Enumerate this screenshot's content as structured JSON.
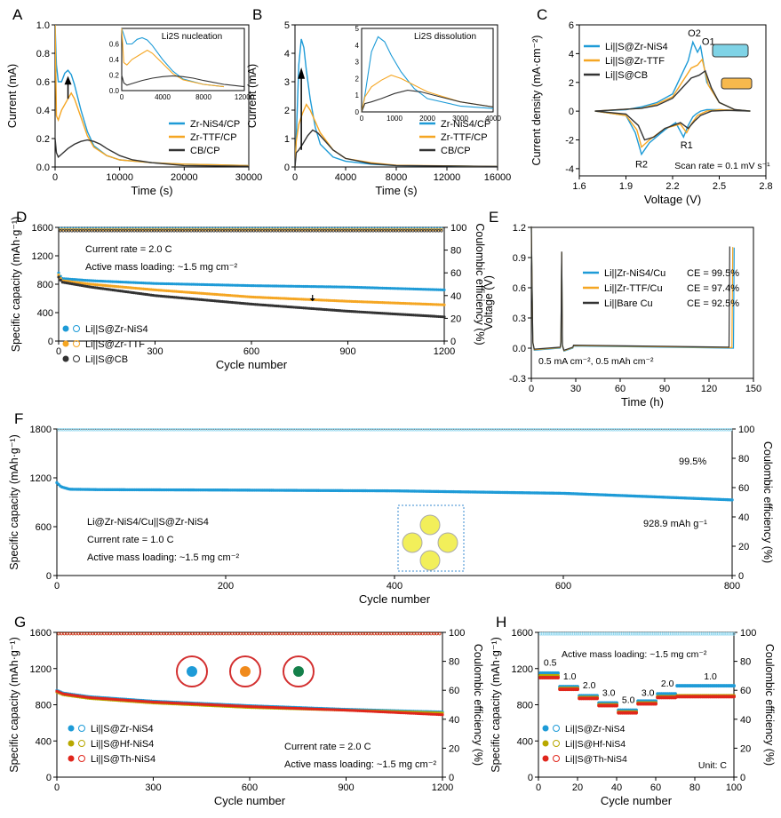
{
  "chart_data": [
    {
      "panel": "A",
      "type": "line",
      "xlabel": "Time (s)",
      "ylabel": "Current (mA)",
      "xlim": [
        0,
        30000
      ],
      "ylim": [
        0,
        1.0
      ],
      "xticks": [
        "0",
        "10000",
        "20000",
        "30000"
      ],
      "yticks": [
        "0.0",
        "0.2",
        "0.4",
        "0.6",
        "0.8",
        "1.0"
      ],
      "legend": [
        "Zr-NiS4/CP",
        "Zr-TTF/CP",
        "CB/CP"
      ],
      "inset_title": "Li2S nucleation",
      "inset_xticks": [
        "0",
        "4000",
        "8000",
        "12000"
      ],
      "inset_yticks": [
        "0.0",
        "0.2",
        "0.4",
        "0.6"
      ],
      "series": [
        {
          "name": "Zr-NiS4/CP",
          "color": "#1e9bd7",
          "x": [
            0,
            200,
            500,
            1000,
            1500,
            2000,
            2500,
            3000,
            4000,
            5000,
            6000,
            8000,
            10000,
            15000,
            20000,
            30000
          ],
          "values": [
            1.0,
            0.72,
            0.6,
            0.6,
            0.66,
            0.68,
            0.65,
            0.58,
            0.4,
            0.25,
            0.15,
            0.08,
            0.05,
            0.03,
            0.02,
            0.01
          ]
        },
        {
          "name": "Zr-TTF/CP",
          "color": "#f5a623",
          "x": [
            0,
            200,
            500,
            1000,
            2000,
            2500,
            3000,
            4000,
            5000,
            6000,
            8000,
            10000,
            15000,
            20000,
            30000
          ],
          "values": [
            1.0,
            0.36,
            0.33,
            0.4,
            0.48,
            0.52,
            0.48,
            0.35,
            0.22,
            0.14,
            0.08,
            0.05,
            0.03,
            0.02,
            0.01
          ]
        },
        {
          "name": "CB/CP",
          "color": "#333333",
          "x": [
            0,
            200,
            500,
            1000,
            2000,
            3000,
            4000,
            5000,
            6000,
            7000,
            8000,
            10000,
            12000,
            15000,
            20000,
            30000
          ],
          "values": [
            0.2,
            0.1,
            0.07,
            0.09,
            0.13,
            0.16,
            0.18,
            0.19,
            0.18,
            0.16,
            0.13,
            0.08,
            0.05,
            0.03,
            0.01,
            0.005
          ]
        }
      ]
    },
    {
      "panel": "B",
      "type": "line",
      "xlabel": "Time (s)",
      "ylabel": "Current (mA)",
      "xlim": [
        0,
        16000
      ],
      "ylim": [
        0,
        5
      ],
      "xticks": [
        "0",
        "4000",
        "8000",
        "12000",
        "16000"
      ],
      "yticks": [
        "0",
        "1",
        "2",
        "3",
        "4",
        "5"
      ],
      "legend": [
        "Zr-NiS4/CP",
        "Zr-TTF/CP",
        "CB/CP"
      ],
      "inset_title": "Li2S dissolution",
      "inset_xticks": [
        "0",
        "1000",
        "2000",
        "3000",
        "4000"
      ],
      "inset_yticks": [
        "0",
        "1",
        "2",
        "3",
        "4",
        "5"
      ],
      "series": [
        {
          "name": "Zr-NiS4/CP",
          "color": "#1e9bd7",
          "x": [
            0,
            100,
            300,
            500,
            700,
            900,
            1200,
            1600,
            2000,
            3000,
            4000,
            6000,
            8000,
            16000
          ],
          "values": [
            0,
            1.0,
            3.6,
            4.5,
            4.2,
            3.4,
            2.4,
            1.4,
            0.8,
            0.35,
            0.2,
            0.1,
            0.05,
            0.02
          ]
        },
        {
          "name": "Zr-TTF/CP",
          "color": "#f5a623",
          "x": [
            0,
            100,
            300,
            600,
            900,
            1200,
            1600,
            2000,
            3000,
            4000,
            6000,
            8000,
            16000
          ],
          "values": [
            0,
            0.9,
            1.5,
            1.9,
            2.2,
            2.0,
            1.6,
            1.2,
            0.6,
            0.3,
            0.15,
            0.06,
            0.02
          ]
        },
        {
          "name": "CB/CP",
          "color": "#333333",
          "x": [
            0,
            100,
            300,
            600,
            1000,
            1400,
            1800,
            2400,
            3000,
            4000,
            6000,
            8000,
            16000
          ],
          "values": [
            0,
            0.5,
            0.6,
            0.8,
            1.1,
            1.3,
            1.2,
            0.9,
            0.6,
            0.3,
            0.12,
            0.05,
            0.02
          ]
        }
      ]
    },
    {
      "panel": "C",
      "type": "line",
      "xlabel": "Voltage (V)",
      "ylabel": "Current density (mA·cm⁻²)",
      "xlim": [
        1.6,
        2.8
      ],
      "ylim": [
        -4.5,
        6
      ],
      "xticks": [
        "1.6",
        "1.9",
        "2.2",
        "2.5",
        "2.8"
      ],
      "yticks": [
        "-4",
        "-2",
        "0",
        "2",
        "4",
        "6"
      ],
      "legend": [
        "Li||S@Zr-NiS4",
        "Li||S@Zr-TTF",
        "Li||S@CB"
      ],
      "annotations": [
        "O2",
        "O1",
        "R1",
        "R2",
        "Scan rate = 0.1 mV s⁻¹"
      ],
      "series": [
        {
          "name": "Li||S@Zr-NiS4",
          "color": "#1e9bd7",
          "x": [
            1.7,
            1.9,
            1.96,
            2.0,
            2.05,
            2.15,
            2.22,
            2.27,
            2.3,
            2.33,
            2.35,
            2.38,
            2.42,
            2.5,
            2.6,
            2.7,
            2.6,
            2.5,
            2.42,
            2.38,
            2.36,
            2.33,
            2.3,
            2.2,
            2.1,
            2.0,
            1.9,
            1.7
          ],
          "values": [
            0,
            -0.3,
            -1.5,
            -3.0,
            -2.2,
            -1.3,
            -0.8,
            -1.8,
            -1.0,
            -0.4,
            -0.2,
            0,
            0.1,
            0.1,
            0.05,
            0.0,
            0.1,
            0.6,
            2.0,
            4.5,
            4.1,
            4.8,
            3.5,
            1.2,
            0.6,
            0.3,
            0.1,
            0
          ]
        },
        {
          "name": "Li||S@Zr-TTF",
          "color": "#f5a623",
          "x": [
            1.7,
            1.9,
            1.97,
            2.0,
            2.05,
            2.15,
            2.25,
            2.29,
            2.32,
            2.36,
            2.42,
            2.5,
            2.7,
            2.6,
            2.5,
            2.43,
            2.39,
            2.36,
            2.32,
            2.2,
            2.1,
            2.0,
            1.7
          ],
          "values": [
            0,
            -0.3,
            -1.3,
            -2.5,
            -2.0,
            -1.2,
            -0.9,
            -1.5,
            -0.9,
            -0.3,
            0,
            0.1,
            0,
            0.1,
            0.6,
            1.8,
            3.6,
            3.2,
            3.0,
            1.0,
            0.5,
            0.2,
            0
          ]
        },
        {
          "name": "Li||S@CB",
          "color": "#333333",
          "x": [
            1.7,
            1.9,
            1.98,
            2.02,
            2.08,
            2.15,
            2.25,
            2.3,
            2.34,
            2.38,
            2.45,
            2.55,
            2.7,
            2.6,
            2.5,
            2.45,
            2.41,
            2.37,
            2.32,
            2.2,
            2.1,
            2.0,
            1.7
          ],
          "values": [
            0,
            -0.2,
            -1.0,
            -2.0,
            -1.8,
            -1.2,
            -0.8,
            -1.2,
            -0.7,
            -0.3,
            0,
            0.05,
            0,
            0.1,
            0.6,
            1.6,
            2.8,
            2.5,
            2.3,
            0.9,
            0.4,
            0.2,
            0
          ]
        }
      ]
    },
    {
      "panel": "D",
      "type": "scatter",
      "xlabel": "Cycle number",
      "ylabel": "Specific capacity (mAh·g⁻¹)",
      "y2label": "Coulombic efficiency (%)",
      "xlim": [
        0,
        1200
      ],
      "ylim": [
        0,
        1600
      ],
      "y2lim": [
        0,
        100
      ],
      "xticks": [
        "0",
        "300",
        "600",
        "900",
        "1200"
      ],
      "yticks": [
        "0",
        "400",
        "800",
        "1200",
        "1600"
      ],
      "y2ticks": [
        "0",
        "20",
        "40",
        "60",
        "80",
        "100"
      ],
      "annotations": [
        "Current rate = 2.0 C",
        "Active mass loading: ~1.5 mg cm⁻²"
      ],
      "legend": [
        "Li||S@Zr-NiS4",
        "Li||S@Zr-TTF",
        "Li||S@CB"
      ],
      "series": [
        {
          "name": "Li||S@Zr-NiS4",
          "color": "#1e9bd7",
          "x": [
            0,
            10,
            100,
            300,
            600,
            900,
            1200
          ],
          "values": [
            960,
            880,
            850,
            810,
            780,
            760,
            720
          ]
        },
        {
          "name": "Li||S@Zr-TTF",
          "color": "#f5a623",
          "x": [
            0,
            10,
            100,
            300,
            600,
            900,
            1200
          ],
          "values": [
            930,
            850,
            800,
            720,
            620,
            560,
            510
          ]
        },
        {
          "name": "Li||S@CB",
          "color": "#333333",
          "x": [
            0,
            10,
            100,
            300,
            600,
            900,
            1200
          ],
          "values": [
            900,
            830,
            760,
            640,
            520,
            420,
            340
          ]
        }
      ],
      "ce_series": [
        {
          "name": "Li||S@Zr-NiS4",
          "color": "#1e9bd7",
          "value": 99
        },
        {
          "name": "Li||S@Zr-TTF",
          "color": "#f5a623",
          "value": 98
        },
        {
          "name": "Li||S@CB",
          "color": "#333333",
          "value": 97
        }
      ]
    },
    {
      "panel": "E",
      "type": "line",
      "xlabel": "Time (h)",
      "ylabel": "Voltage (V)",
      "xlim": [
        0,
        150
      ],
      "ylim": [
        -0.3,
        1.2
      ],
      "xticks": [
        "0",
        "30",
        "60",
        "90",
        "120",
        "150"
      ],
      "yticks": [
        "-0.3",
        "0.0",
        "0.3",
        "0.6",
        "0.9",
        "1.2"
      ],
      "legend": [
        "Li||Zr-NiS4/Cu",
        "Li||Zr-TTF/Cu",
        "Li||Bare Cu"
      ],
      "ce_labels": [
        "CE = 99.5%",
        "CE = 97.4%",
        "CE = 92.5%"
      ],
      "annotation": "0.5 mA cm⁻², 0.5 mAh cm⁻²",
      "series": [
        {
          "name": "Li||Zr-NiS4/Cu",
          "color": "#1e9bd7",
          "end_h": 137
        },
        {
          "name": "Li||Zr-TTF/Cu",
          "color": "#f5a623",
          "end_h": 136
        },
        {
          "name": "Li||Bare Cu",
          "color": "#333333",
          "end_h": 134
        }
      ]
    },
    {
      "panel": "F",
      "type": "scatter",
      "xlabel": "Cycle number",
      "ylabel": "Specific capacity (mAh·g⁻¹)",
      "y2label": "Coulombic efficiency (%)",
      "xlim": [
        0,
        800
      ],
      "ylim": [
        0,
        1800
      ],
      "y2lim": [
        0,
        100
      ],
      "xticks": [
        "0",
        "200",
        "400",
        "600",
        "800"
      ],
      "yticks": [
        "0",
        "600",
        "1200",
        "1800"
      ],
      "y2ticks": [
        "0",
        "20",
        "40",
        "60",
        "80",
        "100"
      ],
      "annotations": [
        "Li@Zr-NiS4/Cu||S@Zr-NiS4",
        "Current rate = 1.0 C",
        "Active mass loading: ~1.5 mg cm⁻²",
        "99.5%",
        "928.9 mAh g⁻¹"
      ],
      "series": [
        {
          "name": "capacity",
          "color": "#1e9bd7",
          "x": [
            0,
            5,
            15,
            50,
            200,
            400,
            600,
            700,
            800
          ],
          "values": [
            1140,
            1090,
            1060,
            1055,
            1050,
            1040,
            1010,
            970,
            928.9
          ]
        }
      ],
      "ce": 99.5
    },
    {
      "panel": "G",
      "type": "scatter",
      "xlabel": "Cycle number",
      "ylabel": "Specific capacity (mAh·g⁻¹)",
      "y2label": "Coulombic efficiency (%)",
      "xlim": [
        0,
        1200
      ],
      "ylim": [
        0,
        1600
      ],
      "y2lim": [
        0,
        100
      ],
      "xticks": [
        "0",
        "300",
        "600",
        "900",
        "1200"
      ],
      "yticks": [
        "0",
        "400",
        "800",
        "1200",
        "1600"
      ],
      "y2ticks": [
        "0",
        "20",
        "40",
        "60",
        "80",
        "100"
      ],
      "annotations": [
        "Current rate = 2.0 C",
        "Active mass loading: ~1.5 mg cm⁻²"
      ],
      "legend": [
        "Li||S@Zr-NiS4",
        "Li||S@Hf-NiS4",
        "Li||S@Th-NiS4"
      ],
      "series": [
        {
          "name": "Li||S@Zr-NiS4",
          "color": "#1e9bd7",
          "x": [
            0,
            20,
            100,
            300,
            600,
            900,
            1200
          ],
          "values": [
            960,
            930,
            890,
            840,
            790,
            750,
            720
          ]
        },
        {
          "name": "Li||S@Hf-NiS4",
          "color": "#b8a800",
          "x": [
            0,
            20,
            100,
            300,
            600,
            900,
            1200
          ],
          "values": [
            940,
            910,
            870,
            820,
            770,
            740,
            710
          ]
        },
        {
          "name": "Li||S@Th-NiS4",
          "color": "#e0261c",
          "x": [
            0,
            20,
            100,
            300,
            600,
            900,
            1200
          ],
          "values": [
            950,
            920,
            880,
            830,
            780,
            740,
            690
          ]
        }
      ]
    },
    {
      "panel": "H",
      "type": "scatter",
      "xlabel": "Cycle number",
      "ylabel": "Specific capacity (mAh·g⁻¹)",
      "y2label": "Coulombic efficiency (%)",
      "xlim": [
        0,
        100
      ],
      "ylim": [
        0,
        1600
      ],
      "y2lim": [
        0,
        100
      ],
      "xticks": [
        "0",
        "20",
        "40",
        "60",
        "80",
        "100"
      ],
      "yticks": [
        "0",
        "400",
        "800",
        "1200",
        "1600"
      ],
      "y2ticks": [
        "0",
        "20",
        "40",
        "60",
        "80",
        "100"
      ],
      "annotations": [
        "Active mass loading: ~1.5 mg cm⁻²",
        "Unit: C"
      ],
      "rate_labels": [
        "0.5",
        "1.0",
        "2.0",
        "3.0",
        "5.0",
        "3.0",
        "2.0",
        "1.0"
      ],
      "legend": [
        "Li||S@Zr-NiS4",
        "Li||S@Hf-NiS4",
        "Li||S@Th-NiS4"
      ],
      "series": [
        {
          "name": "Li||S@Zr-NiS4",
          "color": "#1e9bd7",
          "steps": [
            1150,
            1000,
            900,
            820,
            740,
            840,
            920,
            1010
          ]
        },
        {
          "name": "Li||S@Hf-NiS4",
          "color": "#b8a800",
          "steps": [
            1120,
            980,
            880,
            800,
            720,
            820,
            890,
            900
          ]
        },
        {
          "name": "Li||S@Th-NiS4",
          "color": "#e0261c",
          "steps": [
            1100,
            970,
            870,
            790,
            710,
            810,
            880,
            890
          ]
        }
      ]
    }
  ]
}
